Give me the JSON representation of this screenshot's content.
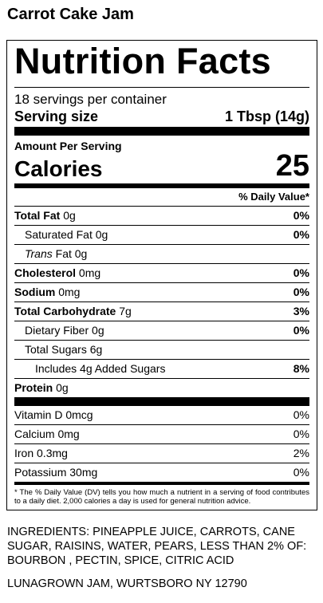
{
  "product": "Carrot Cake Jam",
  "label": {
    "title": "Nutrition Facts",
    "servings": "18 servings per container",
    "serving_size_label": "Serving size",
    "serving_size": "1 Tbsp (14g)",
    "amount_per_serving": "Amount Per Serving",
    "calories_label": "Calories",
    "calories": "25",
    "dv_header": "% Daily Value*",
    "rows": [
      {
        "name": "Total Fat",
        "amount": "0g",
        "dv": "0%"
      },
      {
        "name": "Saturated Fat",
        "amount": "0g",
        "dv": "0%"
      },
      {
        "name_italic": "Trans",
        "name": "Fat",
        "amount": "0g"
      },
      {
        "name": "Cholesterol",
        "amount": "0mg",
        "dv": "0%"
      },
      {
        "name": "Sodium",
        "amount": "0mg",
        "dv": "0%"
      },
      {
        "name": "Total Carbohydrate",
        "amount": "7g",
        "dv": "3%"
      },
      {
        "name": "Dietary Fiber",
        "amount": "0g",
        "dv": "0%"
      },
      {
        "name": "Total Sugars",
        "amount": "6g"
      },
      {
        "name": "Includes 4g Added Sugars",
        "dv": "8%"
      },
      {
        "name": "Protein",
        "amount": "0g"
      }
    ],
    "vitamins": [
      {
        "name": "Vitamin D",
        "amount": "0mcg",
        "dv": "0%"
      },
      {
        "name": "Calcium",
        "amount": "0mg",
        "dv": "0%"
      },
      {
        "name": "Iron",
        "amount": "0.3mg",
        "dv": "2%"
      },
      {
        "name": "Potassium",
        "amount": "30mg",
        "dv": "0%"
      }
    ],
    "footnote": "* The % Daily Value (DV) tells you how much a nutrient in a serving of food contributes to a daily diet. 2,000 calories a day is used for general nutrition advice."
  },
  "ingredients": "INGREDIENTS: PINEAPPLE JUICE, CARROTS, CANE SUGAR, RAISINS, WATER, PEARS, LESS THAN 2% OF: BOURBON , PECTIN, SPICE, CITRIC ACID",
  "manufacturer": "LUNAGROWN JAM, WURTSBORO NY 12790"
}
